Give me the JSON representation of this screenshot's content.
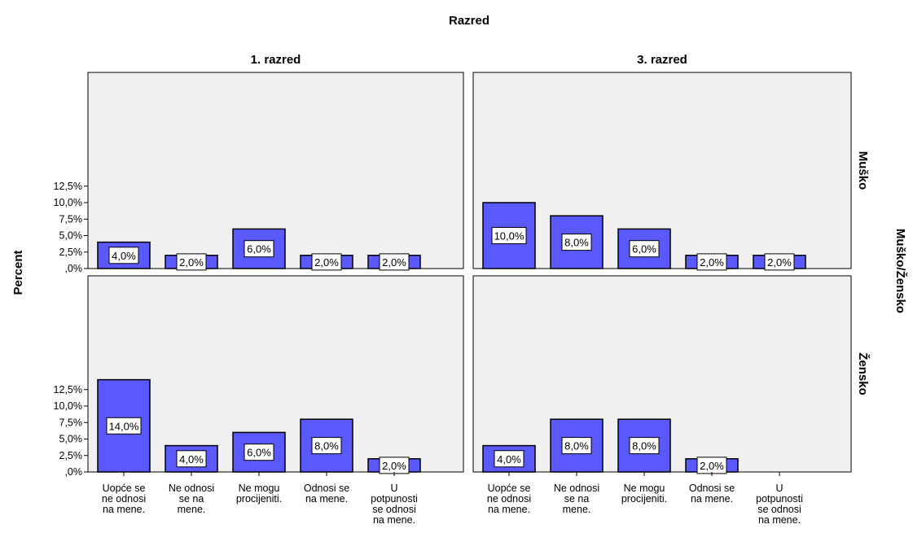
{
  "chart_data": {
    "type": "bar",
    "title": "Razred",
    "ylabel": "Percent",
    "row_axis_title": "Muško/Žensko",
    "columns": [
      "1. razred",
      "3. razred"
    ],
    "rows": [
      "Muško",
      "Žensko"
    ],
    "categories": [
      "Uopće se ne odnosi na mene.",
      "Ne odnosi se na mene.",
      "Ne mogu procijeniti.",
      "Odnosi se na mene.",
      "U potpunosti se odnosi na mene."
    ],
    "category_lines": [
      [
        "Uopće se",
        "ne odnosi",
        "na mene."
      ],
      [
        "Ne odnosi",
        "se na",
        "mene."
      ],
      [
        "Ne mogu",
        "procijeniti."
      ],
      [
        "Odnosi se",
        "na mene."
      ],
      [
        "U",
        "potpunosti",
        "se odnosi",
        "na mene."
      ]
    ],
    "yticks": [
      ",0%",
      "2,5%",
      "5,0%",
      "7,5%",
      "10,0%",
      "12,5%"
    ],
    "ylim": [
      0,
      15
    ],
    "panels": [
      {
        "row": "Muško",
        "column": "1. razred",
        "values": [
          4.0,
          2.0,
          6.0,
          2.0,
          2.0
        ],
        "labels": [
          "4,0%",
          "2,0%",
          "6,0%",
          "2,0%",
          "2,0%"
        ]
      },
      {
        "row": "Muško",
        "column": "3. razred",
        "values": [
          10.0,
          8.0,
          6.0,
          2.0,
          2.0
        ],
        "labels": [
          "10,0%",
          "8,0%",
          "6,0%",
          "2,0%",
          "2,0%"
        ]
      },
      {
        "row": "Žensko",
        "column": "1. razred",
        "values": [
          14.0,
          4.0,
          6.0,
          8.0,
          2.0
        ],
        "labels": [
          "14,0%",
          "4,0%",
          "6,0%",
          "8,0%",
          "2,0%"
        ]
      },
      {
        "row": "Žensko",
        "column": "3. razred",
        "values": [
          4.0,
          8.0,
          8.0,
          2.0,
          null
        ],
        "labels": [
          "4,0%",
          "8,0%",
          "8,0%",
          "2,0%",
          null
        ]
      }
    ],
    "grid": false,
    "colors": {
      "bar_fill": "#5959ff",
      "panel_bg": "#f0f0f0",
      "frame": "#000000"
    }
  }
}
